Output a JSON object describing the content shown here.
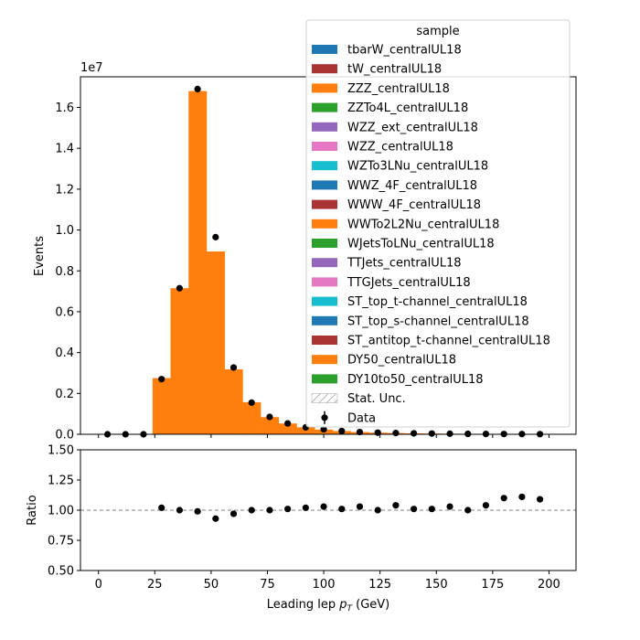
{
  "chart_data": [
    {
      "type": "bar",
      "panel": "main",
      "ylabel": "Events",
      "offset_text": "1e7",
      "ylim": [
        0,
        17500000
      ],
      "yticks": [
        "0.0",
        "0.2",
        "0.4",
        "0.6",
        "0.8",
        "1.0",
        "1.2",
        "1.4",
        "1.6"
      ],
      "xlim": [
        -8,
        212
      ],
      "bin_width": 8,
      "stack": {
        "name": "DY50_centralUL18",
        "color": "#ff7f0e",
        "bin_centers": [
          28,
          36,
          44,
          52,
          60,
          68,
          76,
          84,
          92,
          100,
          108,
          116,
          124,
          132,
          140,
          148,
          156,
          164,
          172,
          180,
          188,
          196
        ],
        "values": [
          2750000,
          7150000,
          16800000,
          8950000,
          3180000,
          1570000,
          840000,
          530000,
          340000,
          230000,
          160000,
          110000,
          80000,
          60000,
          45000,
          35000,
          27000,
          21000,
          17000,
          13000,
          10000,
          8000
        ]
      },
      "data_points": {
        "name": "Data",
        "x": [
          4,
          12,
          20,
          28,
          36,
          44,
          52,
          60,
          68,
          76,
          84,
          92,
          100,
          108,
          116,
          124,
          132,
          140,
          148,
          156,
          164,
          172,
          180,
          188,
          196
        ],
        "y": [
          0,
          0,
          0,
          2700000,
          7150000,
          16900000,
          9650000,
          3270000,
          1550000,
          850000,
          530000,
          340000,
          240000,
          160000,
          110000,
          80000,
          62000,
          46000,
          36000,
          28000,
          21000,
          18000,
          14000,
          11000,
          9000
        ]
      },
      "legend": {
        "title": "sample",
        "placement": "upper-right",
        "entries": [
          {
            "label": "tbarW_centralUL18",
            "color": "#1f77b4",
            "kind": "patch"
          },
          {
            "label": "tW_centralUL18",
            "color": "#aa3333",
            "kind": "patch"
          },
          {
            "label": "ZZZ_centralUL18",
            "color": "#ff7f0e",
            "kind": "patch"
          },
          {
            "label": "ZZTo4L_centralUL18",
            "color": "#2ca02c",
            "kind": "patch"
          },
          {
            "label": "WZZ_ext_centralUL18",
            "color": "#9467bd",
            "kind": "patch"
          },
          {
            "label": "WZZ_centralUL18",
            "color": "#e377c2",
            "kind": "patch"
          },
          {
            "label": "WZTo3LNu_centralUL18",
            "color": "#17becf",
            "kind": "patch"
          },
          {
            "label": "WWZ_4F_centralUL18",
            "color": "#1f77b4",
            "kind": "patch"
          },
          {
            "label": "WWW_4F_centralUL18",
            "color": "#aa3333",
            "kind": "patch"
          },
          {
            "label": "WWTo2L2Nu_centralUL18",
            "color": "#ff7f0e",
            "kind": "patch"
          },
          {
            "label": "WJetsToLNu_centralUL18",
            "color": "#2ca02c",
            "kind": "patch"
          },
          {
            "label": "TTJets_centralUL18",
            "color": "#9467bd",
            "kind": "patch"
          },
          {
            "label": "TTGJets_centralUL18",
            "color": "#e377c2",
            "kind": "patch"
          },
          {
            "label": "ST_top_t-channel_centralUL18",
            "color": "#17becf",
            "kind": "patch"
          },
          {
            "label": "ST_top_s-channel_centralUL18",
            "color": "#1f77b4",
            "kind": "patch"
          },
          {
            "label": "ST_antitop_t-channel_centralUL18",
            "color": "#aa3333",
            "kind": "patch"
          },
          {
            "label": "DY50_centralUL18",
            "color": "#ff7f0e",
            "kind": "patch"
          },
          {
            "label": "DY10to50_centralUL18",
            "color": "#2ca02c",
            "kind": "patch"
          },
          {
            "label": "Stat. Unc.",
            "color": "#808080",
            "kind": "hatch"
          },
          {
            "label": "Data",
            "color": "#000000",
            "kind": "errorbar"
          }
        ]
      }
    },
    {
      "type": "scatter",
      "panel": "ratio",
      "ylabel": "Ratio",
      "xlabel": "Leading lep p_T (GeV)",
      "xlabel_main": "Leading lep ",
      "xlabel_sym": "p",
      "xlabel_sub": "T",
      "xlabel_unit": " (GeV)",
      "ylim": [
        0.5,
        1.5
      ],
      "yticks": [
        "0.50",
        "0.75",
        "1.00",
        "1.25",
        "1.50"
      ],
      "xlim": [
        -8,
        212
      ],
      "xticks": [
        "0",
        "25",
        "50",
        "75",
        "100",
        "125",
        "150",
        "175",
        "200"
      ],
      "reference_line": 1.0,
      "x": [
        28,
        36,
        44,
        52,
        60,
        68,
        76,
        84,
        92,
        100,
        108,
        116,
        124,
        132,
        140,
        148,
        156,
        164,
        172,
        180,
        188,
        196
      ],
      "y": [
        1.02,
        1.0,
        0.99,
        0.93,
        0.97,
        1.0,
        1.0,
        1.01,
        1.02,
        1.03,
        1.01,
        1.03,
        1.0,
        1.04,
        1.01,
        1.01,
        1.03,
        1.0,
        1.04,
        1.1,
        1.11,
        1.09
      ]
    }
  ]
}
